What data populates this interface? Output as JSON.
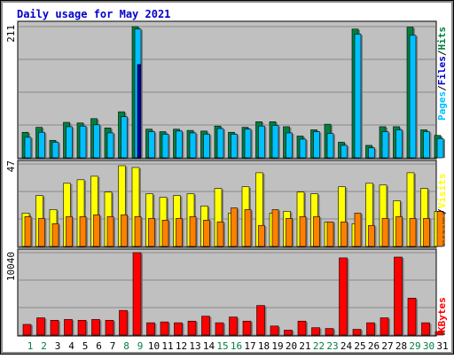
{
  "chart_data": {
    "type": "bar",
    "title": "Daily usage for May 2021",
    "categories": [
      "1",
      "2",
      "3",
      "4",
      "5",
      "6",
      "7",
      "8",
      "9",
      "10",
      "11",
      "12",
      "13",
      "14",
      "15",
      "16",
      "17",
      "18",
      "19",
      "20",
      "21",
      "22",
      "23",
      "24",
      "25",
      "26",
      "27",
      "28",
      "29",
      "30",
      "31"
    ],
    "weekend_days": [
      "1",
      "2",
      "8",
      "9",
      "15",
      "16",
      "22",
      "23",
      "29",
      "30"
    ],
    "panels": {
      "top": {
        "ymax_label": "211",
        "ymax": 211,
        "right_labels": [
          "Pages",
          "/",
          "Files",
          "/",
          "Hits"
        ],
        "series": [
          {
            "name": "Hits",
            "values": [
              41,
              49,
              28,
              57,
              56,
              63,
              48,
              74,
              211,
              46,
              42,
              46,
              44,
              43,
              51,
              41,
              49,
              58,
              58,
              50,
              35,
              45,
              54,
              25,
              207,
              20,
              50,
              50,
              210,
              45,
              36
            ]
          },
          {
            "name": "Files",
            "values": [
              33,
              41,
              25,
              50,
              51,
              53,
              40,
              66,
              207,
              42,
              38,
              43,
              40,
              38,
              47,
              38,
              46,
              51,
              52,
              40,
              30,
              42,
              39,
              20,
              199,
              16,
              42,
              45,
              197,
              42,
              31
            ]
          },
          {
            "name": "Pages",
            "values": [
              0,
              0,
              0,
              0,
              0,
              0,
              0,
              0,
              150,
              0,
              0,
              0,
              0,
              0,
              0,
              0,
              0,
              0,
              0,
              0,
              0,
              0,
              0,
              0,
              0,
              0,
              0,
              0,
              0,
              0,
              0
            ]
          }
        ]
      },
      "middle": {
        "ymax_label": "47",
        "ymax": 47,
        "right_labels": [
          "Sites",
          "/",
          "Visits"
        ],
        "series": [
          {
            "name": "Visits",
            "values": [
              19,
              29,
              21,
              36,
              38,
              40,
              31,
              46,
              45,
              30,
              28,
              29,
              30,
              23,
              33,
              19,
              34,
              42,
              19,
              20,
              31,
              30,
              14,
              34,
              13,
              36,
              35,
              26,
              42,
              33,
              20
            ]
          },
          {
            "name": "Sites",
            "values": [
              17,
              16,
              13,
              17,
              17,
              18,
              17,
              18,
              17,
              16,
              15,
              16,
              17,
              15,
              14,
              22,
              21,
              12,
              21,
              16,
              17,
              17,
              14,
              14,
              19,
              12,
              16,
              17,
              16,
              16,
              20
            ]
          }
        ]
      },
      "bottom": {
        "ymax_label": "10040",
        "ymax": 10040,
        "right_labels": [
          "KBytes"
        ],
        "series": [
          {
            "name": "KBytes",
            "values": [
              1300,
              2100,
              1800,
              1900,
              1800,
              1900,
              1800,
              3000,
              10040,
              1500,
              1600,
              1500,
              1700,
              2300,
              1500,
              2200,
              1700,
              3600,
              1100,
              600,
              1700,
              900,
              800,
              9400,
              700,
              1500,
              2100,
              9500,
              4500,
              1500,
              400
            ]
          }
        ]
      }
    },
    "colors": {
      "title": "#0000cc",
      "panel_bg": "#c0c0c0",
      "frame_bg": "#ffffff",
      "hits": "#008040",
      "files": "#00c0ff",
      "pages": "#0000a0",
      "visits": "#ffff00",
      "sites": "#ff8000",
      "kbytes": "#ff0000",
      "label_hits": "#008040",
      "label_files": "#0000cc",
      "label_pages": "#00c0ff",
      "label_sites": "#ff8000",
      "label_visits": "#ffff00",
      "label_kbytes": "#ff0000",
      "day_weekend": "#008040",
      "day_weekday": "#000000"
    }
  }
}
